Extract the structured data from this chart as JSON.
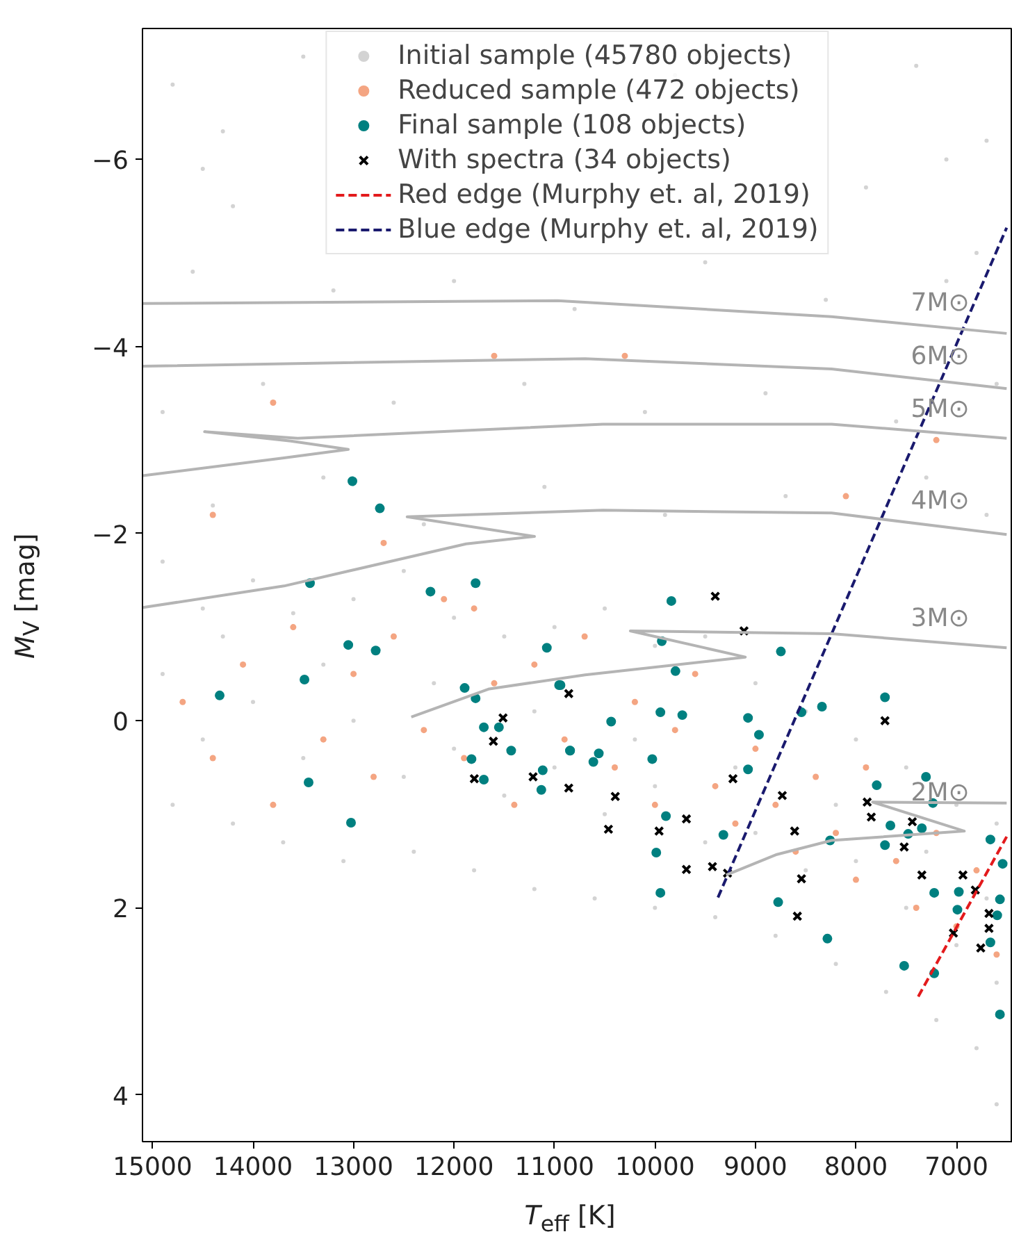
{
  "chart_data": {
    "type": "scatter",
    "xlabel": "T$_{eff}$ [K]",
    "ylabel": "M$_{V}$ [mag]",
    "xlim": [
      15100,
      6440
    ],
    "ylim": [
      4.5,
      -7.4
    ],
    "xticks": [
      15000,
      14000,
      13000,
      12000,
      11000,
      10000,
      9000,
      8000,
      7000
    ],
    "yticks": [
      {
        "value": -6,
        "label": "−6"
      },
      {
        "value": -4,
        "label": "−4"
      },
      {
        "value": -2,
        "label": "−2"
      },
      0,
      2,
      4
    ],
    "grid": false,
    "legend": "top",
    "series": [
      {
        "name": "Initial sample (45780 objects)",
        "marker": "circle",
        "color": "#d3d3d3",
        "x": [
          14800,
          13500,
          14300,
          11000,
          9800,
          7100,
          7400,
          6700,
          14200,
          14500,
          11500,
          10300,
          9100,
          7900,
          6800,
          14600,
          13200,
          12000,
          10800,
          9500,
          8300,
          7100,
          14900,
          13900,
          12600,
          11300,
          10100,
          8900,
          7600,
          6600,
          14400,
          13300,
          12300,
          11100,
          9900,
          8700,
          7300,
          6700,
          14900,
          14500,
          14000,
          13600,
          13000,
          12500,
          12000,
          11500,
          11000,
          10500,
          10000,
          9500,
          9000,
          8500,
          8000,
          7500,
          7000,
          6600,
          14900,
          14500,
          14000,
          13500,
          13000,
          12500,
          12000,
          11500,
          11000,
          10500,
          10000,
          9500,
          9000,
          8500,
          8000,
          7500,
          7000,
          6600,
          14800,
          14200,
          13700,
          13100,
          12400,
          11800,
          11200,
          10600,
          10000,
          9400,
          8800,
          8200,
          7700,
          7200,
          6800,
          6600,
          14300,
          13300,
          12200,
          11200,
          10200,
          9200,
          8200,
          7300,
          6700
        ],
        "values": [
          -6.8,
          -7.1,
          -6.3,
          -7.2,
          -6.9,
          -6.0,
          -7.0,
          -6.2,
          -5.5,
          -5.9,
          -5.3,
          -5.6,
          -5.2,
          -5.7,
          -5.0,
          -4.8,
          -4.6,
          -4.7,
          -4.4,
          -4.9,
          -4.5,
          -4.7,
          -3.3,
          -3.6,
          -3.4,
          -3.6,
          -3.3,
          -3.5,
          -3.2,
          -3.6,
          -2.3,
          -2.6,
          -2.1,
          -2.5,
          -2.2,
          -2.4,
          -2.6,
          -2.2,
          -1.7,
          -1.2,
          -1.5,
          -1.15,
          -1.3,
          -1.6,
          -1.1,
          -0.9,
          -1.0,
          -1.2,
          -0.8,
          -0.9,
          -0.4,
          -0.1,
          0.2,
          0.5,
          0.9,
          1.1,
          -0.5,
          0.2,
          -0.2,
          0.4,
          0.0,
          0.6,
          0.3,
          0.8,
          0.5,
          1.0,
          0.7,
          1.3,
          1.2,
          1.6,
          1.5,
          2.0,
          2.4,
          2.8,
          0.9,
          1.1,
          1.3,
          1.5,
          1.4,
          1.6,
          1.8,
          1.9,
          2.0,
          2.1,
          2.3,
          2.6,
          2.9,
          3.2,
          3.5,
          4.1,
          -0.9,
          -0.6,
          -0.4,
          -0.1,
          0.2,
          0.5,
          0.9,
          1.4,
          1.9
        ]
      },
      {
        "name": "Reduced sample (472 objects)",
        "marker": "circle",
        "color": "#f4a582",
        "x": [
          14700,
          14400,
          14100,
          13800,
          13600,
          13300,
          13000,
          12800,
          12600,
          12300,
          12100,
          11900,
          11600,
          11400,
          11200,
          10900,
          10700,
          10400,
          10200,
          10000,
          9800,
          9600,
          9400,
          9200,
          9000,
          8800,
          8600,
          8400,
          8200,
          8000,
          7900,
          7600,
          7400,
          7200,
          7000,
          6800,
          6600,
          13800,
          11600,
          10300,
          8100,
          7200,
          12700,
          11800,
          14400
        ],
        "values": [
          -0.2,
          0.4,
          -0.6,
          0.9,
          -1.0,
          0.2,
          -0.5,
          0.6,
          -0.9,
          0.1,
          -1.3,
          0.4,
          -0.4,
          0.9,
          -0.6,
          0.2,
          -0.9,
          0.5,
          -0.2,
          0.9,
          0.1,
          -0.5,
          0.7,
          1.1,
          0.3,
          0.9,
          1.4,
          0.6,
          1.2,
          1.7,
          0.5,
          1.5,
          2.0,
          1.2,
          2.2,
          1.6,
          2.5,
          -3.4,
          -3.9,
          -3.9,
          -2.4,
          -3.0,
          -1.9,
          -1.2,
          -2.2
        ]
      },
      {
        "name": "Final sample (108 objects)",
        "marker": "circle",
        "color": "#008080",
        "x": [
          13011,
          12738,
          13433,
          12234,
          11785,
          13052,
          12779,
          11076,
          13488,
          14332,
          11894,
          11785,
          10954,
          11703,
          11553,
          11826,
          11703,
          11431,
          10845,
          11117,
          11131,
          13447,
          13025,
          9837,
          8747,
          9932,
          9796,
          10940,
          10436,
          9946,
          9728,
          9074,
          8965,
          8542,
          8338,
          7711,
          10845,
          10559,
          10613,
          10027,
          9074,
          9891,
          9987,
          9319,
          9946,
          8774,
          8257,
          8284,
          7793,
          7303,
          7234,
          7657,
          7711,
          7480,
          7344,
          7520,
          7221,
          6976,
          6990,
          7221,
          6662,
          6540,
          6567,
          6594,
          6662,
          6567
        ],
        "values": [
          -2.56,
          -2.27,
          -1.47,
          -1.38,
          -1.47,
          -0.81,
          -0.75,
          -0.78,
          -0.44,
          -0.27,
          -0.35,
          -0.24,
          -0.38,
          0.07,
          0.07,
          0.41,
          0.63,
          0.32,
          0.32,
          0.53,
          0.74,
          0.66,
          1.09,
          -1.28,
          -0.74,
          -0.85,
          -0.53,
          -0.38,
          0.01,
          -0.09,
          -0.06,
          -0.03,
          0.15,
          -0.09,
          -0.15,
          -0.25,
          0.32,
          0.35,
          0.44,
          0.41,
          0.52,
          1.02,
          1.41,
          1.22,
          1.84,
          1.94,
          1.28,
          2.33,
          0.69,
          0.6,
          0.88,
          1.12,
          1.33,
          1.21,
          1.15,
          2.62,
          1.84,
          1.83,
          2.02,
          2.7,
          1.27,
          1.53,
          1.91,
          2.08,
          2.37,
          3.14
        ]
      },
      {
        "name": "With spectra (34 objects)",
        "marker": "cross",
        "color": "#000000",
        "x": [
          10858,
          11512,
          11608,
          11798,
          11213,
          10858,
          9400,
          9114,
          10395,
          10463,
          9959,
          9687,
          9687,
          9428,
          9278,
          9224,
          8733,
          8610,
          8542,
          8583,
          7711,
          7888,
          7847,
          7439,
          7520,
          7344,
          6935,
          6812,
          7030,
          6676,
          6676,
          6758
        ],
        "values": [
          -0.29,
          -0.03,
          0.22,
          0.62,
          0.6,
          0.72,
          -1.33,
          -0.96,
          0.81,
          1.16,
          1.18,
          1.05,
          1.59,
          1.56,
          1.63,
          0.62,
          0.8,
          1.18,
          1.69,
          2.09,
          0.0,
          0.87,
          1.03,
          1.08,
          1.35,
          1.65,
          1.65,
          1.81,
          2.27,
          2.06,
          2.22,
          2.43
        ]
      },
      {
        "name": "Red edge (Murphy et. al, 2019)",
        "type": "line",
        "line_style": "dashed",
        "color": "#e31a1c",
        "x": [
          7380,
          6500
        ],
        "values": [
          2.95,
          1.24
        ]
      },
      {
        "name": "Blue edge (Murphy et. al, 2019)",
        "type": "line",
        "line_style": "dashed",
        "color": "#1a1a6e",
        "x": [
          9373,
          6500
        ],
        "values": [
          1.89,
          -5.27
        ]
      },
      {
        "type": "line",
        "line_style": "solid",
        "color": "#b4b4b4",
        "x": [
          15095,
          10967,
          8242,
          6500
        ],
        "values": [
          -4.46,
          -4.49,
          -4.32,
          -4.14
        ]
      },
      {
        "type": "line",
        "line_style": "solid",
        "color": "#b4b4b4",
        "x": [
          15095,
          10695,
          8242,
          6500
        ],
        "values": [
          -3.79,
          -3.87,
          -3.76,
          -3.55
        ]
      },
      {
        "type": "line",
        "line_style": "solid",
        "color": "#b4b4b4",
        "x": [
          15095,
          13692,
          13052,
          13624,
          14482,
          13556,
          10518,
          8242,
          6500
        ],
        "values": [
          -2.62,
          -2.81,
          -2.9,
          -2.99,
          -3.09,
          -3.02,
          -3.17,
          -3.17,
          -3.02
        ]
      },
      {
        "type": "line",
        "line_style": "solid",
        "color": "#b4b4b4",
        "x": [
          15095,
          13692,
          11880,
          11199,
          12466,
          10518,
          8242,
          6500
        ],
        "values": [
          -1.21,
          -1.44,
          -1.89,
          -1.97,
          -2.18,
          -2.25,
          -2.22,
          -1.99
        ]
      },
      {
        "type": "line",
        "line_style": "solid",
        "color": "#b4b4b4",
        "x": [
          12425,
          11649,
          10695,
          9101,
          10245,
          8242,
          6500
        ],
        "values": [
          -0.04,
          -0.34,
          -0.49,
          -0.68,
          -0.96,
          -0.93,
          -0.78
        ]
      },
      {
        "type": "line",
        "line_style": "solid",
        "color": "#b4b4b4",
        "x": [
          9292,
          8787,
          8242,
          6921,
          7834,
          6500
        ],
        "values": [
          1.65,
          1.43,
          1.28,
          1.18,
          0.87,
          0.88
        ]
      }
    ],
    "annotations": [
      "7M⊙",
      "6M⊙",
      "5M⊙",
      "4M⊙",
      "3M⊙",
      "2M⊙"
    ]
  }
}
